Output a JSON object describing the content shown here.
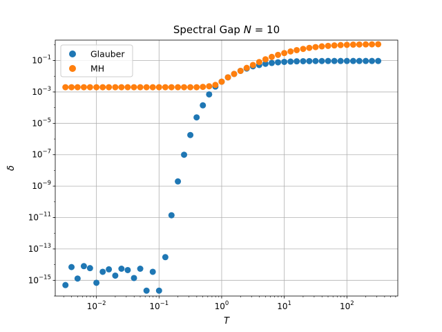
{
  "chart_data": {
    "type": "scatter",
    "title": "Spectral Gap  N =  10",
    "title_parts": {
      "text": "Spectral Gap  ",
      "var": "N",
      "rest": " =  10"
    },
    "xlabel": "T",
    "ylabel": "δ",
    "xscale": "log",
    "yscale": "log",
    "xlim": [
      0.0022,
      650
    ],
    "ylim": [
      1e-16,
      2
    ],
    "x_ticks": [
      {
        "value": 0.01,
        "base": "10",
        "exp": "−2"
      },
      {
        "value": 0.1,
        "base": "10",
        "exp": "−1"
      },
      {
        "value": 1,
        "base": "10",
        "exp": "0"
      },
      {
        "value": 10,
        "base": "10",
        "exp": "1"
      },
      {
        "value": 100,
        "base": "10",
        "exp": "2"
      }
    ],
    "y_ticks": [
      {
        "value": 1e-15,
        "base": "10",
        "exp": "−15"
      },
      {
        "value": 1e-13,
        "base": "10",
        "exp": "−13"
      },
      {
        "value": 1e-11,
        "base": "10",
        "exp": "−11"
      },
      {
        "value": 1e-09,
        "base": "10",
        "exp": "−9"
      },
      {
        "value": 1e-07,
        "base": "10",
        "exp": "−7"
      },
      {
        "value": 1e-05,
        "base": "10",
        "exp": "−5"
      },
      {
        "value": 0.001,
        "base": "10",
        "exp": "−3"
      },
      {
        "value": 0.1,
        "base": "10",
        "exp": "−1"
      }
    ],
    "grid": true,
    "legend_position": "top-left",
    "series": [
      {
        "name": "Glauber",
        "color": "#1f77b4",
        "x": [
          0.0032,
          0.004,
          0.005,
          0.0063,
          0.0079,
          0.01,
          0.0126,
          0.0158,
          0.02,
          0.0251,
          0.0316,
          0.0398,
          0.0501,
          0.0631,
          0.0794,
          0.1,
          0.126,
          0.158,
          0.2,
          0.251,
          0.316,
          0.398,
          0.501,
          0.631,
          0.794,
          1.0,
          1.26,
          1.58,
          2.0,
          2.51,
          3.16,
          3.98,
          5.01,
          6.31,
          7.94,
          10.0,
          12.6,
          15.8,
          20.0,
          25.1,
          31.6,
          39.8,
          50.1,
          63.1,
          79.4,
          100,
          126,
          158,
          200,
          251,
          316
        ],
        "y": [
          5e-16,
          7e-15,
          1.3e-15,
          8e-15,
          6e-15,
          7e-16,
          3.5e-15,
          5e-15,
          2e-15,
          5.5e-15,
          4.5e-15,
          1.4e-15,
          5.5e-15,
          2.2e-16,
          3.5e-15,
          2.2e-16,
          3e-14,
          1.4e-11,
          2e-09,
          1e-07,
          1.8e-06,
          2.4e-05,
          0.00014,
          0.0007,
          0.0022,
          0.0045,
          0.0085,
          0.014,
          0.022,
          0.031,
          0.043,
          0.052,
          0.062,
          0.07,
          0.077,
          0.082,
          0.086,
          0.089,
          0.091,
          0.092,
          0.093,
          0.093,
          0.094,
          0.094,
          0.094,
          0.094,
          0.094,
          0.094,
          0.094,
          0.094,
          0.094
        ]
      },
      {
        "name": "MH",
        "color": "#ff7f0e",
        "x": [
          0.0032,
          0.004,
          0.005,
          0.0063,
          0.0079,
          0.01,
          0.0126,
          0.0158,
          0.02,
          0.0251,
          0.0316,
          0.0398,
          0.0501,
          0.0631,
          0.0794,
          0.1,
          0.126,
          0.158,
          0.2,
          0.251,
          0.316,
          0.398,
          0.501,
          0.631,
          0.794,
          1.0,
          1.26,
          1.58,
          2.0,
          2.51,
          3.16,
          3.98,
          5.01,
          6.31,
          7.94,
          10.0,
          12.6,
          15.8,
          20.0,
          25.1,
          31.6,
          39.8,
          50.1,
          63.1,
          79.4,
          100,
          126,
          158,
          200,
          251,
          316
        ],
        "y": [
          0.002,
          0.002,
          0.002,
          0.002,
          0.002,
          0.002,
          0.002,
          0.002,
          0.002,
          0.002,
          0.002,
          0.002,
          0.002,
          0.002,
          0.002,
          0.002,
          0.002,
          0.002,
          0.002,
          0.002,
          0.002,
          0.002,
          0.0021,
          0.0023,
          0.0028,
          0.0045,
          0.0085,
          0.014,
          0.022,
          0.034,
          0.052,
          0.08,
          0.12,
          0.17,
          0.23,
          0.3,
          0.38,
          0.46,
          0.55,
          0.64,
          0.72,
          0.8,
          0.86,
          0.92,
          0.97,
          1.0,
          1.03,
          1.05,
          1.07,
          1.08,
          1.09
        ]
      }
    ]
  }
}
